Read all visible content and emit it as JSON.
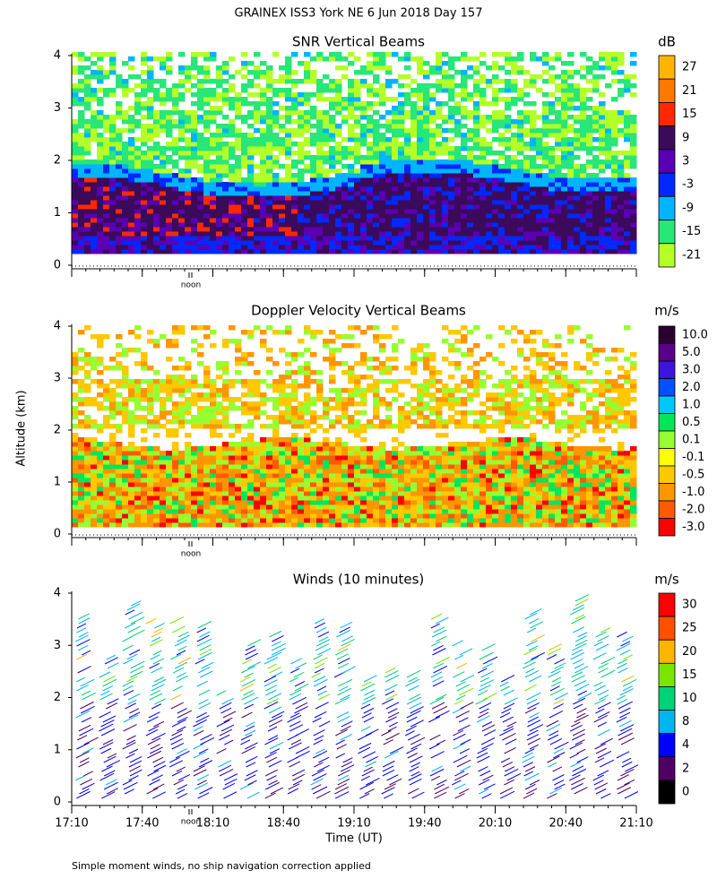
{
  "title": "GRAINEX ISS3 York NE   6 Jun 2018 Day 157",
  "ylabel": "Altitude (km)",
  "footnote": "Simple moment winds, no ship navigation correction applied",
  "chart_data": [
    {
      "type": "contour",
      "title": "SNR Vertical Beams",
      "noon_label": "noon",
      "ylim": [
        0,
        4
      ],
      "yticks": [
        0,
        1,
        2,
        3,
        4
      ],
      "colorbar": {
        "unit": "dB",
        "ticks": [
          27,
          21,
          15,
          9,
          3,
          -3,
          -9,
          -15,
          -21
        ],
        "colors": [
          "#ffb400",
          "#ff7800",
          "#ff2800",
          "#3c0a5a",
          "#5a00b4",
          "#0028ff",
          "#00b4ff",
          "#28e678",
          "#b4ff28"
        ]
      }
    },
    {
      "type": "contour",
      "title": "Doppler Velocity Vertical Beams",
      "noon_label": "noon",
      "ylim": [
        0,
        4
      ],
      "yticks": [
        0,
        1,
        2,
        3,
        4
      ],
      "colorbar": {
        "unit": "m/s",
        "ticks": [
          {
            "value": 10,
            "label": "10.0"
          },
          {
            "value": 5,
            "label": "5.0"
          },
          {
            "value": 3,
            "label": "3.0"
          },
          {
            "value": 2,
            "label": "2.0"
          },
          {
            "value": 1,
            "label": "1.0"
          },
          0.5,
          0.1,
          -0.1,
          -0.5,
          {
            "value": -1,
            "label": "-1.0"
          },
          {
            "value": -2,
            "label": "-2.0"
          },
          {
            "value": -3,
            "label": "-3.0"
          }
        ],
        "colors": [
          "#2a0030",
          "#5a008c",
          "#3c14dc",
          "#0050ff",
          "#00c8ff",
          "#00e65a",
          "#96ff32",
          "#ffff00",
          "#ffc800",
          "#ff9600",
          "#ff5a00",
          "#ff0000"
        ]
      }
    },
    {
      "type": "barbs",
      "title": "Winds (10 minutes)",
      "noon_label": "noon",
      "xlabel": "Time (UT)",
      "categories": [
        "17:10",
        "17:40",
        "18:10",
        "18:40",
        "19:10",
        "19:40",
        "20:10",
        "20:40",
        "21:10"
      ],
      "ylim": [
        0,
        4
      ],
      "yticks": [
        0,
        1,
        2,
        3,
        4
      ],
      "colorbar": {
        "unit": "m/s",
        "ticks": [
          30,
          25,
          20,
          15,
          10,
          8,
          4,
          2,
          0
        ],
        "colors": [
          "#ff0000",
          "#ff5000",
          "#ffb400",
          "#78e600",
          "#00d278",
          "#00b4f0",
          "#0000ff",
          "#500064",
          "#000000"
        ]
      }
    }
  ]
}
